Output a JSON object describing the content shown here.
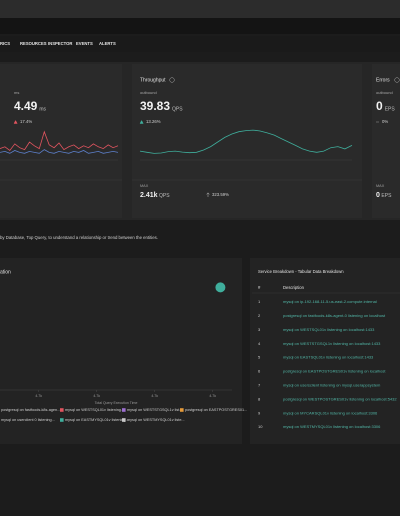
{
  "nav": {
    "tabs": [
      "RICS",
      "RESOURCES",
      "INSPECTOR",
      "EVENTS",
      "ALERTS"
    ]
  },
  "panels": [
    {
      "sub": "ms",
      "value": "4.49",
      "unit": "ms",
      "change": "17.4%",
      "lines": [
        {
          "color": "#e0545f",
          "values": [
            40,
            42,
            38,
            45,
            41,
            39,
            47,
            43,
            40,
            58,
            44,
            41,
            46,
            39,
            42,
            44,
            40,
            43,
            41,
            45,
            42,
            40,
            44,
            41,
            43
          ]
        },
        {
          "color": "#5c7fc9",
          "values": [
            36,
            37,
            35,
            38,
            36,
            35,
            37,
            36,
            35,
            39,
            36,
            35,
            37,
            36,
            35,
            37,
            36,
            38,
            35,
            36,
            37,
            35,
            36,
            37,
            36
          ]
        }
      ],
      "ylim": [
        30,
        62
      ]
    },
    {
      "title": "Throughput",
      "sub": "outbound",
      "value": "39.83",
      "unit": "QPS",
      "change": "13.26%",
      "lines": [
        {
          "color": "#3fae9c",
          "values": [
            36,
            35.5,
            35,
            35.2,
            35.8,
            36,
            35.6,
            35.3,
            35.5,
            36.5,
            38,
            40,
            42,
            43.5,
            44.5,
            45,
            45.2,
            44.8,
            44,
            43,
            41.5,
            40,
            38.5,
            37,
            36,
            35.5,
            36,
            37.5,
            38,
            37,
            38.5
          ]
        }
      ],
      "ylim": [
        33,
        47
      ],
      "max_label": "MAX",
      "max_value": "2.41k",
      "max_unit": "QPS",
      "max_change": "323.59%"
    },
    {
      "title": "Errors",
      "sub": "outbound",
      "value": "0",
      "unit": "EPS",
      "change": "0%",
      "max_label": "MAX",
      "max_value": "0",
      "max_unit": "EPS"
    }
  ],
  "description": "by Database, Top Query, to understand a relationship or trend between the entities.",
  "scatter": {
    "title": "ation",
    "x_label": "Total Query Execution Time",
    "xlim": [
      4690,
      4750
    ],
    "ylim": [
      0,
      100
    ],
    "xticks": [
      {
        "value": 4700,
        "label": "4.7k"
      },
      {
        "value": 4715,
        "label": "4.7k"
      },
      {
        "value": 4730,
        "label": "4.7k"
      },
      {
        "value": 4745,
        "label": "4.7k"
      }
    ],
    "points": [
      {
        "x": 4747,
        "y": 95,
        "color": "#3fae9c"
      }
    ],
    "legend": [
      {
        "name": "postgresql on fastfoods-k8s-agen...",
        "color": "#5c7fc9"
      },
      {
        "name": "mysql on WESTSQL01v listening...",
        "color": "#e0545f"
      },
      {
        "name": "mysql on WESTSTGSQL1v list...",
        "color": "#9c6fd0"
      },
      {
        "name": "postgresql on EASTPOSTGRES01...",
        "color": "#e59a3a"
      },
      {
        "name": "mysql on userclient 0 listening...",
        "color": "#d65aa0"
      },
      {
        "name": "mysql on EASTMYSQL01v listening...",
        "color": "#3fae9c"
      },
      {
        "name": "mysql on WESTMYSQL01v liste...",
        "color": "#c8c8c8"
      }
    ]
  },
  "table": {
    "title": "Service Breakdown - Tabular Data Breakdown",
    "columns": [
      "#",
      "Description"
    ],
    "rows": [
      [
        "1",
        "mysql on ip-192-168-11-5.us-east-2.compute.internal"
      ],
      [
        "2",
        "postgresql on fastfoods-k8s-agent-0 listening on localhost"
      ],
      [
        "3",
        "mysql on WESTSQL01v listening on localhost:1433"
      ],
      [
        "4",
        "mysql on WESTSTGSQL1v listening on localhost:1433"
      ],
      [
        "5",
        "mysql on EASTSQL01v listening on localhost:1433"
      ],
      [
        "6",
        "postgresql on EASTPOSTGRES01v listening on localhost"
      ],
      [
        "7",
        "mysql on usersclient listening on mysql.userappsystem"
      ],
      [
        "8",
        "postgresql on WESTPOSTGRES01v listening on localhost:5432"
      ],
      [
        "9",
        "mysql on MYCARSQL01v listening on localhost:3306"
      ],
      [
        "10",
        "mysql on WESTMYSQL01v listening on localhost:3306"
      ]
    ]
  }
}
